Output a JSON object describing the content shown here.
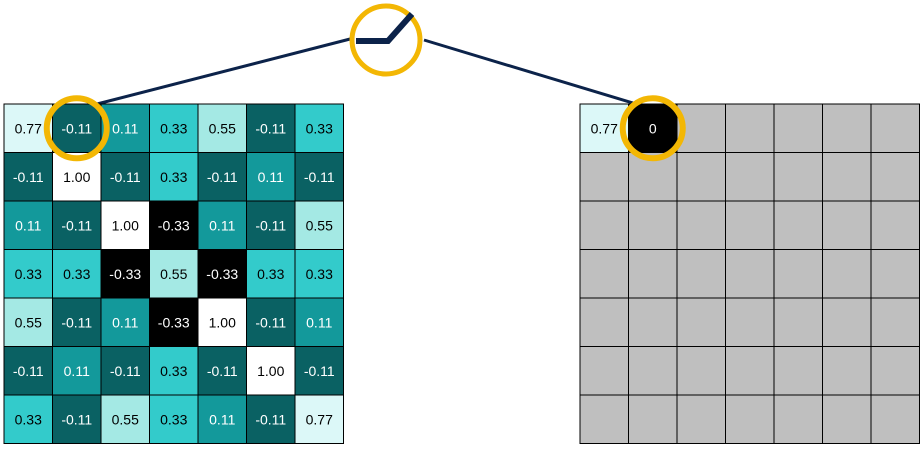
{
  "left_grid": {
    "rows": [
      [
        "0.77",
        "-0.11",
        "0.11",
        "0.33",
        "0.55",
        "-0.11",
        "0.33"
      ],
      [
        "-0.11",
        "1.00",
        "-0.11",
        "0.33",
        "-0.11",
        "0.11",
        "-0.11"
      ],
      [
        "0.11",
        "-0.11",
        "1.00",
        "-0.33",
        "0.11",
        "-0.11",
        "0.55"
      ],
      [
        "0.33",
        "0.33",
        "-0.33",
        "0.55",
        "-0.33",
        "0.33",
        "0.33"
      ],
      [
        "0.55",
        "-0.11",
        "0.11",
        "-0.33",
        "1.00",
        "-0.11",
        "0.11"
      ],
      [
        "-0.11",
        "0.11",
        "-0.11",
        "0.33",
        "-0.11",
        "1.00",
        "-0.11"
      ],
      [
        "0.33",
        "-0.11",
        "0.55",
        "0.33",
        "0.11",
        "-0.11",
        "0.77"
      ]
    ],
    "highlighted_cell": [
      0,
      1
    ]
  },
  "right_grid": {
    "rows": [
      [
        "0.77",
        "0",
        "",
        "",
        "",
        "",
        ""
      ],
      [
        "",
        "",
        "",
        "",
        "",
        "",
        ""
      ],
      [
        "",
        "",
        "",
        "",
        "",
        "",
        ""
      ],
      [
        "",
        "",
        "",
        "",
        "",
        "",
        ""
      ],
      [
        "",
        "",
        "",
        "",
        "",
        "",
        ""
      ],
      [
        "",
        "",
        "",
        "",
        "",
        "",
        ""
      ],
      [
        "",
        "",
        "",
        "",
        "",
        "",
        ""
      ]
    ],
    "highlighted_cell": [
      0,
      1
    ]
  },
  "function_icon": "relu-icon",
  "colors": {
    "dark_teal": "#0a6163",
    "mid_teal": "#13999b",
    "light_teal": "#33cbcb",
    "pale_teal": "#a4e9e4",
    "lightest": "#dcf8f8",
    "white": "#ffffff",
    "black": "#000000",
    "empty_gray": "#bfbfbf",
    "highlight_ring": "#f3b704",
    "connector": "#0c234a"
  }
}
